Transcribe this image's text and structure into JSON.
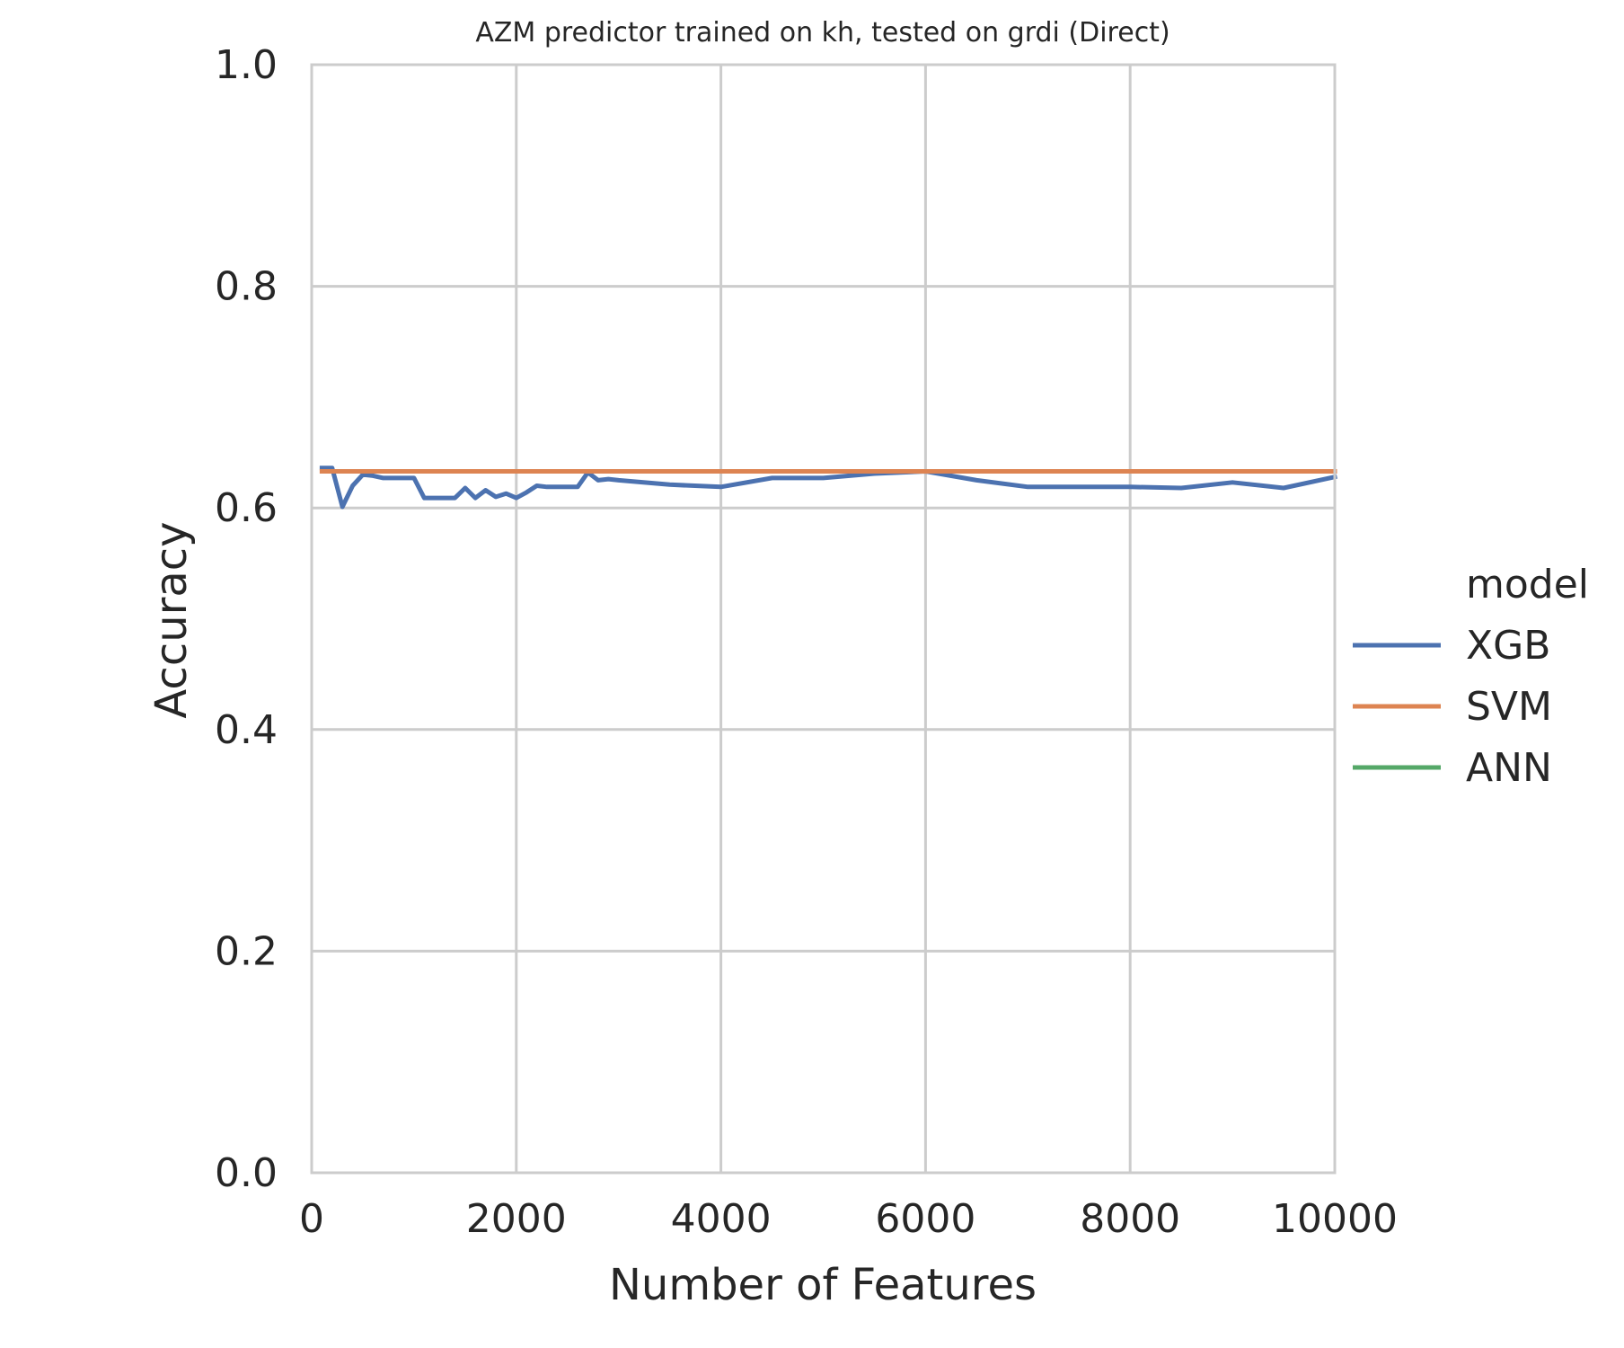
{
  "chart_data": {
    "type": "line",
    "title": "AZM predictor trained on kh, tested on grdi (Direct)",
    "xlabel": "Number of Features",
    "ylabel": "Accuracy",
    "xlim": [
      0,
      10000
    ],
    "ylim": [
      0.0,
      1.0
    ],
    "xticks": [
      0,
      2000,
      4000,
      6000,
      8000,
      10000
    ],
    "yticks": [
      0.0,
      0.2,
      0.4,
      0.6,
      0.8,
      1.0
    ],
    "xtick_labels": [
      "0",
      "2000",
      "4000",
      "6000",
      "8000",
      "10000"
    ],
    "ytick_labels": [
      "0.0",
      "0.2",
      "0.4",
      "0.6",
      "0.8",
      "1.0"
    ],
    "grid": true,
    "legend": {
      "title": "model",
      "placement": "right"
    },
    "series": [
      {
        "name": "XGB",
        "color": "#4c72b0",
        "x": [
          100,
          200,
          300,
          400,
          500,
          600,
          700,
          800,
          900,
          1000,
          1100,
          1200,
          1300,
          1400,
          1500,
          1600,
          1700,
          1800,
          1900,
          2000,
          2100,
          2200,
          2300,
          2400,
          2500,
          2600,
          2700,
          2800,
          2900,
          3000,
          3500,
          4000,
          4500,
          5000,
          5500,
          6000,
          6500,
          7000,
          7500,
          8000,
          8500,
          9000,
          9500,
          10000
        ],
        "y": [
          0.636,
          0.636,
          0.601,
          0.62,
          0.63,
          0.629,
          0.627,
          0.627,
          0.627,
          0.627,
          0.609,
          0.609,
          0.609,
          0.609,
          0.618,
          0.609,
          0.616,
          0.61,
          0.613,
          0.609,
          0.614,
          0.62,
          0.619,
          0.619,
          0.619,
          0.619,
          0.632,
          0.625,
          0.626,
          0.625,
          0.621,
          0.619,
          0.627,
          0.627,
          0.631,
          0.633,
          0.625,
          0.619,
          0.619,
          0.619,
          0.618,
          0.623,
          0.618,
          0.628
        ]
      },
      {
        "name": "SVM",
        "color": "#dd8452",
        "x": [
          100,
          10000
        ],
        "y": [
          0.633,
          0.633
        ]
      },
      {
        "name": "ANN",
        "color": "#55a868",
        "x": [],
        "y": []
      }
    ]
  }
}
